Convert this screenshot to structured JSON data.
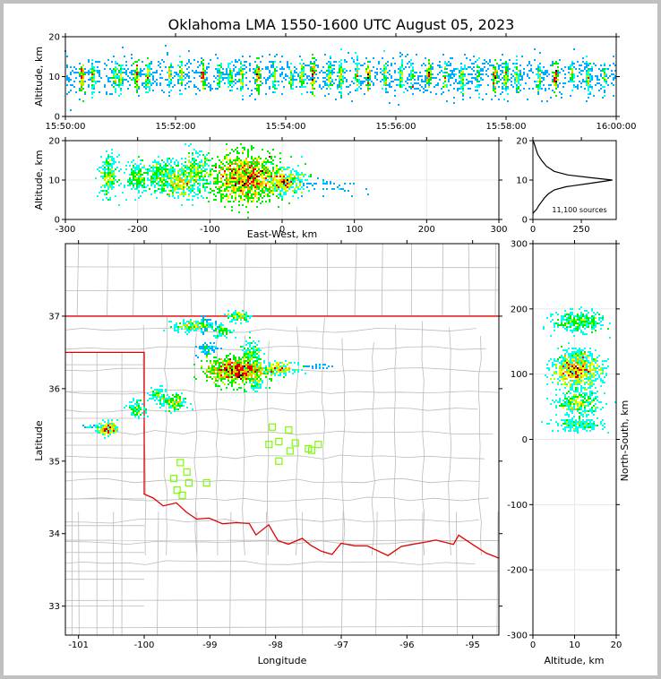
{
  "title": "Oklahoma LMA 1550-1600 UTC August 05, 2023",
  "colors": {
    "state_border": "#e00000",
    "county": "#bbbbbb",
    "station": "#7cfc00",
    "axis": "#000000"
  },
  "colormap": [
    "#0000ee",
    "#00aaff",
    "#00ffee",
    "#00ee00",
    "#aaff00",
    "#ffff00",
    "#ffaa00",
    "#ff0000",
    "#aa0000",
    "#000000"
  ],
  "chart_data": [
    {
      "id": "time_height",
      "type": "heatmap",
      "xlabel": "",
      "ylabel": "Altitude, km",
      "x_ticks": [
        "15:50:00",
        "15:52:00",
        "15:54:00",
        "15:56:00",
        "15:58:00",
        "16:00:00"
      ],
      "xlim_minutes": [
        0,
        10
      ],
      "ylim": [
        0,
        20
      ],
      "y_ticks": [
        0,
        10,
        20
      ],
      "columns_minutes": [
        0.3,
        0.5,
        0.9,
        1.0,
        1.3,
        1.5,
        1.9,
        2.1,
        2.5,
        2.8,
        3.0,
        3.2,
        3.5,
        3.8,
        4.1,
        4.3,
        4.5,
        4.8,
        5.0,
        5.3,
        5.5,
        5.8,
        6.1,
        6.3,
        6.6,
        6.9,
        7.2,
        7.5,
        7.8,
        8.0,
        8.2,
        8.6,
        8.9,
        9.2,
        9.5,
        9.8
      ]
    },
    {
      "id": "ew_altitude",
      "type": "heatmap",
      "xlabel": "East-West, km",
      "ylabel": "Altitude, km",
      "xlim": [
        -300,
        300
      ],
      "x_ticks": [
        -300,
        -200,
        -100,
        0,
        100,
        200,
        300
      ],
      "ylim": [
        0,
        20
      ],
      "y_ticks": [
        0,
        10,
        20
      ],
      "clusters": [
        {
          "x": -240,
          "z": 11,
          "sx": 6,
          "sz": 2.5,
          "n": 80,
          "peak": 0.55
        },
        {
          "x": -200,
          "z": 10.5,
          "sx": 7,
          "sz": 2,
          "n": 70,
          "peak": 0.4
        },
        {
          "x": -165,
          "z": 11,
          "sx": 12,
          "sz": 2,
          "n": 110,
          "peak": 0.5
        },
        {
          "x": -140,
          "z": 9.5,
          "sx": 10,
          "sz": 2,
          "n": 90,
          "peak": 0.7
        },
        {
          "x": -120,
          "z": 12,
          "sx": 10,
          "sz": 2.5,
          "n": 90,
          "peak": 0.5
        },
        {
          "x": -50,
          "z": 10.5,
          "sx": 25,
          "sz": 3,
          "n": 420,
          "peak": 1.0
        },
        {
          "x": 5,
          "z": 9.5,
          "sx": 12,
          "sz": 1.5,
          "n": 110,
          "peak": 0.75
        },
        {
          "x": 60,
          "z": 8.5,
          "sx": 25,
          "sz": 1,
          "n": 15,
          "peak": 0.2
        }
      ]
    },
    {
      "id": "altitude_histogram",
      "type": "line",
      "annotation": "11,100 sources",
      "xlim": [
        0,
        430
      ],
      "x_ticks": [
        0,
        250
      ],
      "ylim": [
        0,
        20
      ],
      "y_ticks": [
        0,
        10,
        20
      ],
      "profile": [
        [
          0,
          1.5
        ],
        [
          8,
          2
        ],
        [
          18,
          2.5
        ],
        [
          30,
          3.5
        ],
        [
          45,
          4.5
        ],
        [
          60,
          5.5
        ],
        [
          80,
          6.5
        ],
        [
          110,
          7.5
        ],
        [
          170,
          8.3
        ],
        [
          300,
          9.2
        ],
        [
          410,
          10
        ],
        [
          300,
          10.6
        ],
        [
          180,
          11.3
        ],
        [
          110,
          12.2
        ],
        [
          70,
          13.5
        ],
        [
          45,
          15
        ],
        [
          25,
          16.5
        ],
        [
          15,
          18
        ],
        [
          5,
          19.5
        ],
        [
          0,
          20
        ]
      ]
    },
    {
      "id": "plan_view",
      "type": "heatmap",
      "xlabel": "Longitude",
      "ylabel": "Latitude",
      "xlim": [
        -101.2,
        -94.6
      ],
      "x_ticks": [
        -101,
        -100,
        -99,
        -98,
        -97,
        -96,
        -95
      ],
      "ylim": [
        32.6,
        38.0
      ],
      "y_ticks": [
        33,
        34,
        35,
        36,
        37
      ],
      "clusters": [
        {
          "lon": -100.55,
          "lat": 35.45,
          "sx": 0.07,
          "sy": 0.05,
          "n": 60,
          "peak": 0.8
        },
        {
          "lon": -100.8,
          "lat": 35.48,
          "sx": 0.05,
          "sy": 0.02,
          "n": 6,
          "peak": 0.2
        },
        {
          "lon": -100.1,
          "lat": 35.72,
          "sx": 0.07,
          "sy": 0.06,
          "n": 30,
          "peak": 0.45
        },
        {
          "lon": -99.8,
          "lat": 35.92,
          "sx": 0.07,
          "sy": 0.05,
          "n": 30,
          "peak": 0.4
        },
        {
          "lon": -99.55,
          "lat": 35.8,
          "sx": 0.09,
          "sy": 0.06,
          "n": 55,
          "peak": 0.7
        },
        {
          "lon": -99.3,
          "lat": 36.86,
          "sx": 0.12,
          "sy": 0.04,
          "n": 50,
          "peak": 0.6
        },
        {
          "lon": -98.55,
          "lat": 37.0,
          "sx": 0.09,
          "sy": 0.04,
          "n": 35,
          "peak": 0.65
        },
        {
          "lon": -98.8,
          "lat": 36.8,
          "sx": 0.07,
          "sy": 0.05,
          "n": 25,
          "peak": 0.45
        },
        {
          "lon": -99.05,
          "lat": 36.88,
          "sx": 0.06,
          "sy": 0.05,
          "n": 20,
          "peak": 0.35
        },
        {
          "lon": -99.05,
          "lat": 36.55,
          "sx": 0.08,
          "sy": 0.05,
          "n": 20,
          "peak": 0.35
        },
        {
          "lon": -98.6,
          "lat": 36.25,
          "sx": 0.22,
          "sy": 0.09,
          "n": 280,
          "peak": 1.0
        },
        {
          "lon": -98.35,
          "lat": 36.45,
          "sx": 0.08,
          "sy": 0.1,
          "n": 50,
          "peak": 0.45
        },
        {
          "lon": -97.95,
          "lat": 36.28,
          "sx": 0.13,
          "sy": 0.04,
          "n": 60,
          "peak": 0.75
        },
        {
          "lon": -98.3,
          "lat": 36.05,
          "sx": 0.06,
          "sy": 0.04,
          "n": 20,
          "peak": 0.4
        },
        {
          "lon": -97.35,
          "lat": 36.3,
          "sx": 0.1,
          "sy": 0.02,
          "n": 8,
          "peak": 0.15
        }
      ],
      "stations": [
        [
          -98.05,
          35.47
        ],
        [
          -97.8,
          35.43
        ],
        [
          -98.1,
          35.23
        ],
        [
          -97.95,
          35.27
        ],
        [
          -97.7,
          35.25
        ],
        [
          -97.5,
          35.17
        ],
        [
          -97.35,
          35.23
        ],
        [
          -97.78,
          35.14
        ],
        [
          -97.95,
          35.0
        ],
        [
          -97.45,
          35.15
        ],
        [
          -99.45,
          34.98
        ],
        [
          -99.35,
          34.85
        ],
        [
          -99.55,
          34.76
        ],
        [
          -99.32,
          34.7
        ],
        [
          -99.05,
          34.7
        ],
        [
          -99.5,
          34.6
        ],
        [
          -99.42,
          34.53
        ]
      ]
    },
    {
      "id": "altitude_ns",
      "type": "heatmap",
      "xlabel": "Altitude, km",
      "ylabel": "North-South, km",
      "xlim": [
        0,
        20
      ],
      "x_ticks": [
        0,
        10,
        20
      ],
      "ylim": [
        -300,
        300
      ],
      "y_ticks": [
        -300,
        -200,
        -100,
        0,
        100,
        200,
        300
      ],
      "clusters": [
        {
          "z": 11,
          "y": 180,
          "sz": 3,
          "sy": 8,
          "n": 110,
          "peak": 0.55
        },
        {
          "z": 10.5,
          "y": 105,
          "sz": 3,
          "sy": 12,
          "n": 260,
          "peak": 1.0
        },
        {
          "z": 11,
          "y": 130,
          "sz": 2,
          "sy": 6,
          "n": 40,
          "peak": 0.5
        },
        {
          "z": 11,
          "y": 55,
          "sz": 2.5,
          "sy": 9,
          "n": 110,
          "peak": 0.7
        },
        {
          "z": 11,
          "y": 22,
          "sz": 3,
          "sy": 5,
          "n": 70,
          "peak": 0.5
        }
      ]
    }
  ]
}
